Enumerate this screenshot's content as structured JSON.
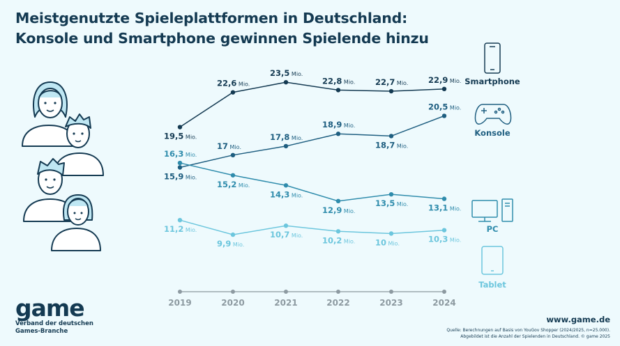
{
  "title": {
    "line1": "Meistgenutzte Spieleplattformen in Deutschland:",
    "line2": "Konsole und Smartphone gewinnen Spielende hinzu"
  },
  "chart_data": {
    "type": "line",
    "title": "Meistgenutzte Spieleplattformen in Deutschland: Konsole und Smartphone gewinnen Spielende hinzu",
    "x": [
      "2019",
      "2020",
      "2021",
      "2022",
      "2023",
      "2024"
    ],
    "unit": "Mio.",
    "series": [
      {
        "name": "Smartphone",
        "color": "#143a52",
        "values": [
          19.5,
          22.6,
          23.5,
          22.8,
          22.7,
          22.9
        ],
        "labels": [
          "19,5",
          "22,6",
          "23,5",
          "22,8",
          "22,7",
          "22,9"
        ],
        "label_pos": [
          "below",
          "above",
          "above",
          "above",
          "above",
          "above"
        ]
      },
      {
        "name": "Konsole",
        "color": "#1e5e80",
        "values": [
          15.9,
          17,
          17.8,
          18.9,
          18.7,
          20.5
        ],
        "labels": [
          "15,9",
          "17",
          "17,8",
          "18,9",
          "18,7",
          "20,5"
        ],
        "label_pos": [
          "below",
          "above",
          "above",
          "above",
          "below",
          "above"
        ]
      },
      {
        "name": "PC",
        "color": "#2f8cac",
        "values": [
          16.3,
          15.2,
          14.3,
          12.9,
          13.5,
          13.1
        ],
        "labels": [
          "16,3",
          "15,2",
          "14,3",
          "12,9",
          "13,5",
          "13,1"
        ],
        "label_pos": [
          "above",
          "below",
          "below",
          "below",
          "below",
          "below"
        ]
      },
      {
        "name": "Tablet",
        "color": "#6cc6dd",
        "values": [
          11.2,
          9.9,
          10.7,
          10.2,
          10,
          10.3
        ],
        "labels": [
          "11,2",
          "9,9",
          "10,7",
          "10,2",
          "10",
          "10,3"
        ],
        "label_pos": [
          "below",
          "below",
          "below",
          "below",
          "below",
          "below"
        ]
      }
    ]
  },
  "platform_icons": [
    "smartphone-icon",
    "gamepad-icon",
    "pc-icon",
    "tablet-icon"
  ],
  "logo": {
    "word": "game",
    "sub1": "Verband der deutschen",
    "sub2": "Games-Branche"
  },
  "url": "www.game.de",
  "source": {
    "line1": "Quelle: Berechnungen auf Basis von YouGov Shopper (2024/2025, n=25.000).",
    "line2": "Abgebildet ist die Anzahl der Spielenden in Deutschland. © game 2025"
  }
}
